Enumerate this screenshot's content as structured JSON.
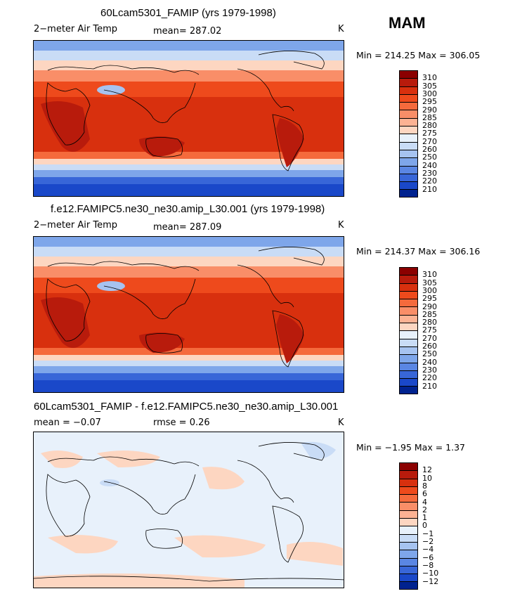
{
  "season": "MAM",
  "panels": [
    {
      "title": "60Lcam5301_FAMIP (yrs 1979-1998)",
      "left_label": "2−meter Air Temp",
      "stat_label": "mean= 287.02",
      "units": "K",
      "minmax": "Min = 214.25 Max = 306.05",
      "legend": [
        "310",
        "305",
        "300",
        "295",
        "290",
        "285",
        "280",
        "275",
        "270",
        "260",
        "250",
        "240",
        "230",
        "220",
        "210"
      ]
    },
    {
      "title": "f.e12.FAMIPC5.ne30_ne30.amip_L30.001 (yrs 1979-1998)",
      "left_label": "2−meter Air Temp",
      "stat_label": "mean= 287.09",
      "units": "K",
      "minmax": "Min = 214.37 Max = 306.16",
      "legend": [
        "310",
        "305",
        "300",
        "295",
        "290",
        "285",
        "280",
        "275",
        "270",
        "260",
        "250",
        "240",
        "230",
        "220",
        "210"
      ]
    },
    {
      "title": "60Lcam5301_FAMIP - f.e12.FAMIPC5.ne30_ne30.amip_L30.001",
      "left_label": "mean =   −0.07",
      "stat_label": "rmse =    0.26",
      "units": "K",
      "minmax": "Min =  −1.95 Max =    1.37",
      "legend": [
        "12",
        "10",
        "8",
        "6",
        "4",
        "2",
        "1",
        "0",
        "−1",
        "−2",
        "−4",
        "−6",
        "−8",
        "−10",
        "−12"
      ]
    }
  ],
  "colors": {
    "palette": [
      "#8b0000",
      "#b81b0c",
      "#d8300e",
      "#ee4a1c",
      "#f56a3c",
      "#f98e68",
      "#fcb293",
      "#fdd6c1",
      "#e8f1fb",
      "#c9dcf6",
      "#a6c3f0",
      "#7ea6ea",
      "#5a86e3",
      "#3866d8",
      "#1a48c9",
      "#00228f"
    ]
  }
}
